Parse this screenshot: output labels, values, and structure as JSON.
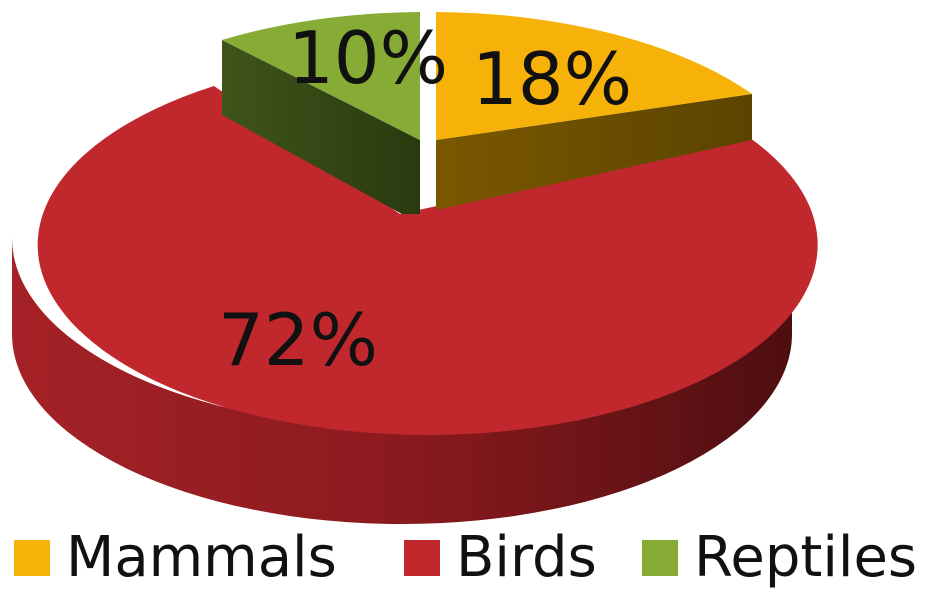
{
  "chart_data": {
    "type": "pie",
    "style": "3d-exploded",
    "slices": [
      {
        "label": "Mammals",
        "value": 18,
        "display": "18%",
        "color": "#f7b20a"
      },
      {
        "label": "Birds",
        "value": 72,
        "display": "72%",
        "color": "#c0282e"
      },
      {
        "label": "Reptiles",
        "value": 10,
        "display": "10%",
        "color": "#86ac35"
      }
    ],
    "legend_position": "bottom"
  }
}
